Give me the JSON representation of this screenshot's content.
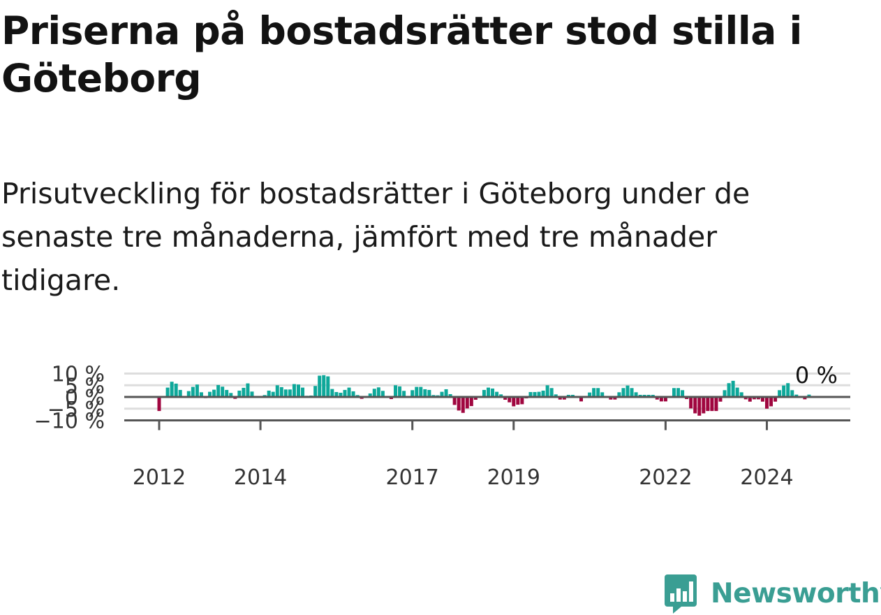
{
  "title": "Priserna på bostadsrätter stod stilla i Göteborg",
  "subtitle": "Prisutveckling för bostadsrätter i Göteborg under de senaste tre månaderna, jämfört med tre månader tidigare.",
  "brand": {
    "name": "Newsworthy",
    "color": "#3a9e93",
    "icon": "bar-chart-speech-bubble-icon"
  },
  "colors": {
    "positive": "#0ea89a",
    "negative": "#a0063f",
    "grid": "#dddddd",
    "axis": "#555555"
  },
  "chart_data": {
    "type": "bar",
    "unit": "%",
    "ylim": [
      -10,
      10
    ],
    "yticks": [
      {
        "value": 10,
        "label": "10 %"
      },
      {
        "value": 5,
        "label": "5 %"
      },
      {
        "value": 0,
        "label": "0 %"
      },
      {
        "value": -5,
        "label": "−5 %"
      },
      {
        "value": -10,
        "label": "−10 %"
      }
    ],
    "xticks": [
      {
        "index": 0,
        "label": "2012"
      },
      {
        "index": 24,
        "label": "2014"
      },
      {
        "index": 60,
        "label": "2017"
      },
      {
        "index": 84,
        "label": "2019"
      },
      {
        "index": 120,
        "label": "2022"
      },
      {
        "index": 144,
        "label": "2024"
      }
    ],
    "grid": true,
    "legend": "none",
    "annotation": "0 %",
    "values": [
      -6.0,
      0,
      4.0,
      6.5,
      5.7,
      3.0,
      0,
      2.5,
      4.3,
      5.3,
      2.0,
      -0.5,
      2.2,
      3.1,
      5.1,
      4.4,
      3.0,
      1.7,
      -0.8,
      2.7,
      3.9,
      5.8,
      2.3,
      0,
      0,
      0.8,
      2.7,
      2.2,
      5.0,
      4.2,
      3.2,
      3.2,
      5.5,
      5.3,
      4.0,
      0.5,
      0.6,
      4.7,
      9.1,
      9.3,
      8.8,
      3.4,
      2.1,
      1.8,
      3.0,
      4.0,
      2.4,
      0.8,
      -0.8,
      0,
      1.5,
      3.5,
      4.1,
      2.6,
      0,
      -0.9,
      5.0,
      4.5,
      2.6,
      0,
      2.9,
      4.3,
      4.3,
      3.3,
      3.0,
      0.8,
      0.7,
      2.2,
      3.3,
      1.2,
      -3.4,
      -5.8,
      -6.8,
      -4.9,
      -3.9,
      -1.2,
      0,
      3.0,
      4.0,
      3.6,
      2.2,
      1.1,
      -1.2,
      -2.3,
      -4.0,
      -3.3,
      -3.1,
      -0.6,
      2.1,
      2.1,
      2.2,
      2.7,
      5.0,
      3.8,
      1.1,
      -1.1,
      -1.1,
      0.9,
      0.9,
      0,
      -1.9,
      0,
      1.9,
      3.8,
      3.8,
      2.0,
      0,
      -1.1,
      -1.1,
      2.0,
      3.8,
      4.9,
      3.8,
      2.0,
      0.9,
      0.9,
      0.9,
      0.9,
      -1.1,
      -1.9,
      -1.9,
      0,
      3.8,
      3.8,
      2.9,
      -0.9,
      -4.9,
      -7.0,
      -8.0,
      -7.0,
      -6.0,
      -6.0,
      -6.0,
      -2.0,
      2.9,
      5.9,
      6.9,
      4.0,
      2.0,
      -1.0,
      -2.0,
      -1.0,
      -1.0,
      -2.0,
      -5.0,
      -4.0,
      -2.0,
      2.9,
      4.9,
      5.9,
      2.9,
      1.0,
      0,
      -1.0,
      1.0
    ]
  }
}
